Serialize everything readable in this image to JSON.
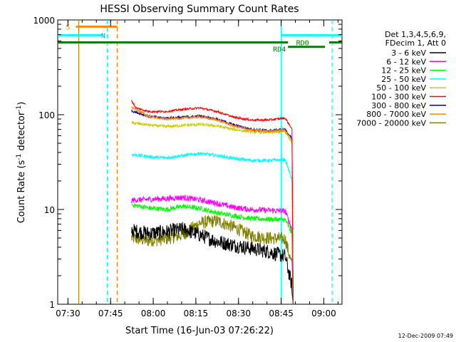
{
  "chart_data": {
    "type": "line",
    "title": "HESSI Observing Summary Count Rates",
    "xlabel": "Start Time (16-Jun-03 07:26:22)",
    "ylabel_main": "Count Rate (s",
    "ylabel_sup1": "-1",
    "ylabel_mid": " detector",
    "ylabel_sup2": "-1",
    "ylabel_end": ")",
    "x_unit": "minutes after 07:26:22",
    "xlim": [
      0,
      100
    ],
    "ylim": [
      1,
      1000
    ],
    "yscale": "log",
    "grid": false,
    "x_ticks": [
      {
        "label": "07:30",
        "value": 3.6
      },
      {
        "label": "07:45",
        "value": 18.6
      },
      {
        "label": "08:00",
        "value": 33.6
      },
      {
        "label": "08:15",
        "value": 48.6
      },
      {
        "label": "08:30",
        "value": 63.6
      },
      {
        "label": "08:45",
        "value": 78.6
      },
      {
        "label": "09:00",
        "value": 93.6
      }
    ],
    "y_ticks": [
      {
        "label": "1",
        "value": 1
      },
      {
        "label": "10",
        "value": 10
      },
      {
        "label": "100",
        "value": 100
      },
      {
        "label": "1000",
        "value": 1000
      }
    ],
    "legend_header": [
      "Det 1,3,4,5,6,9,",
      "FDecim 1, Att 0"
    ],
    "legend_placement": "right",
    "series": [
      {
        "name": "3 - 6 keV",
        "color": "#000000",
        "start": 26.0,
        "end": 82.5,
        "x": [
          26,
          32,
          38,
          44,
          50,
          56,
          62,
          68,
          74,
          80,
          82.5
        ],
        "values": [
          6.0,
          5.6,
          5.8,
          6.2,
          5.4,
          4.6,
          4.2,
          3.9,
          3.6,
          3.2,
          1.5
        ]
      },
      {
        "name": "6 - 12 keV",
        "color": "#ff00ff",
        "start": 26.0,
        "end": 82.5,
        "x": [
          26,
          32,
          38,
          44,
          50,
          56,
          62,
          68,
          74,
          80,
          82.5
        ],
        "values": [
          12.5,
          12.8,
          13.0,
          13.4,
          12.6,
          11.6,
          10.5,
          10.0,
          9.8,
          9.6,
          6.0
        ]
      },
      {
        "name": "12 - 25 keV",
        "color": "#00ff00",
        "start": 26.0,
        "end": 82.5,
        "x": [
          26,
          32,
          38,
          44,
          50,
          56,
          62,
          68,
          74,
          80,
          82.5
        ],
        "values": [
          11.2,
          10.4,
          10.0,
          10.8,
          10.3,
          9.2,
          8.6,
          8.0,
          7.9,
          7.8,
          5.5
        ]
      },
      {
        "name": "25 - 50 keV",
        "color": "#00ffff",
        "start": 26.0,
        "end": 82.5,
        "x": [
          26,
          32,
          38,
          44,
          50,
          56,
          62,
          68,
          74,
          80,
          82.5
        ],
        "values": [
          38.0,
          36.0,
          35.0,
          37.0,
          39.0,
          37.0,
          34.5,
          33.0,
          32.8,
          33.5,
          20.0
        ]
      },
      {
        "name": "50 - 100 keV",
        "color": "#cccc00",
        "start": 26.0,
        "end": 82.5,
        "x": [
          26,
          32,
          38,
          44,
          50,
          56,
          62,
          68,
          74,
          80,
          82.5
        ],
        "values": [
          82.0,
          78.0,
          75.0,
          77.0,
          79.0,
          76.0,
          70.0,
          66.0,
          65.0,
          66.0,
          50.0
        ]
      },
      {
        "name": "100 - 300 keV",
        "color": "#ff0000",
        "start": 26.0,
        "end": 82.5,
        "x": [
          26,
          27.5,
          32,
          38,
          44,
          50,
          56,
          62,
          68,
          74,
          80,
          82.5
        ],
        "values": [
          140.0,
          118.0,
          108.0,
          108.0,
          114.0,
          118.0,
          108.0,
          94.0,
          88.0,
          88.0,
          92.0,
          70.0
        ]
      },
      {
        "name": "300 - 800 keV",
        "color": "#0000aa",
        "start": 26.0,
        "end": 82.5,
        "x": [
          26,
          32,
          38,
          44,
          50,
          56,
          62,
          68,
          74,
          80,
          82.5
        ],
        "values": [
          110.0,
          96.0,
          92.0,
          94.0,
          97.0,
          90.0,
          78.0,
          70.0,
          68.0,
          70.0,
          55.0
        ]
      },
      {
        "name": "800 - 7000 keV",
        "color": "#ff8800",
        "start": 26.0,
        "end": 82.5,
        "x": [
          26,
          32,
          38,
          44,
          50,
          56,
          62,
          68,
          74,
          80,
          82.5
        ],
        "values": [
          120.0,
          96.0,
          90.0,
          92.0,
          95.0,
          88.0,
          76.0,
          69.0,
          67.0,
          69.0,
          52.0
        ]
      },
      {
        "name": "7000 - 20000 keV",
        "color": "#808000",
        "start": 26.0,
        "end": 82.5,
        "x": [
          26,
          32,
          38,
          44,
          50,
          56,
          62,
          68,
          74,
          80,
          82.5
        ],
        "values": [
          5.0,
          4.7,
          4.9,
          5.4,
          7.2,
          7.6,
          6.5,
          5.3,
          5.0,
          4.9,
          2.5
        ]
      }
    ],
    "flags": [
      {
        "name": "S",
        "color": "#ff8800",
        "x_start": 6.4,
        "x_end": 20.9,
        "value": 850
      },
      {
        "name": "N",
        "color": "#00ffff",
        "x_start": 0,
        "x_end": 15.5,
        "value": 690
      },
      {
        "name": "RD0",
        "color": "#00ffff",
        "x_start": 78.6,
        "x_end": 100,
        "value": 690
      },
      {
        "name": "RD4",
        "color": "#008000",
        "x_start": 0,
        "x_end": 81.0,
        "value": 580
      },
      {
        "name": "",
        "color": "#008000",
        "x_start": 81.0,
        "x_end": 94.0,
        "value": 520
      },
      {
        "name": "",
        "color": "#008000",
        "x_start": 95.5,
        "x_end": 100,
        "value": 580
      }
    ],
    "vertical_markers": [
      {
        "color": "#cc8800",
        "style": "solid",
        "x": 7.4
      },
      {
        "color": "#00ffff",
        "style": "dashed",
        "x": 17.4
      },
      {
        "color": "#ff8800",
        "style": "dashed",
        "x": 20.9
      },
      {
        "color": "#00ffff",
        "style": "solid",
        "x": 78.6
      },
      {
        "color": "#00ffff",
        "style": "dashed",
        "x": 96.5
      }
    ]
  },
  "footer": {
    "timestamp": "12-Dec-2009 07:49"
  }
}
